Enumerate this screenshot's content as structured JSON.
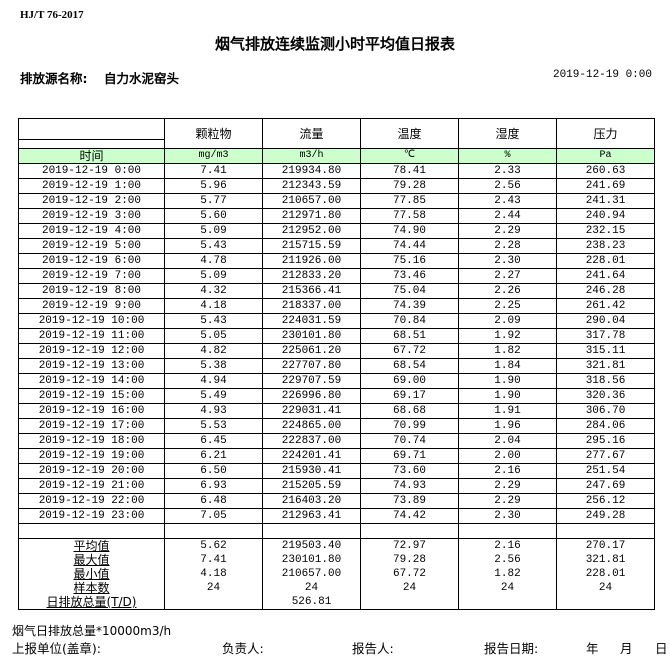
{
  "standard": "HJ/T  76-2017",
  "title": "烟气排放连续监测小时平均值日报表",
  "source_label": "排放源名称:",
  "source_value": "自力水泥窑头",
  "report_datetime": "2019-12-19 0:00",
  "table": {
    "headers": [
      "颗粒物",
      "流量",
      "温度",
      "湿度",
      "压力"
    ],
    "time_label": "时间",
    "units": [
      "mg/m3",
      "m3/h",
      "℃",
      "%",
      "Pa"
    ],
    "rows": [
      [
        "2019-12-19 0:00",
        "7.41",
        "219934.80",
        "78.41",
        "2.33",
        "260.63"
      ],
      [
        "2019-12-19 1:00",
        "5.96",
        "212343.59",
        "79.28",
        "2.56",
        "241.69"
      ],
      [
        "2019-12-19 2:00",
        "5.77",
        "210657.00",
        "77.85",
        "2.43",
        "241.31"
      ],
      [
        "2019-12-19 3:00",
        "5.60",
        "212971.80",
        "77.58",
        "2.44",
        "240.94"
      ],
      [
        "2019-12-19 4:00",
        "5.09",
        "212952.00",
        "74.90",
        "2.29",
        "232.15"
      ],
      [
        "2019-12-19 5:00",
        "5.43",
        "215715.59",
        "74.44",
        "2.28",
        "238.23"
      ],
      [
        "2019-12-19 6:00",
        "4.78",
        "211926.00",
        "75.16",
        "2.30",
        "228.01"
      ],
      [
        "2019-12-19 7:00",
        "5.09",
        "212833.20",
        "73.46",
        "2.27",
        "241.64"
      ],
      [
        "2019-12-19 8:00",
        "4.32",
        "215366.41",
        "75.04",
        "2.26",
        "246.28"
      ],
      [
        "2019-12-19 9:00",
        "4.18",
        "218337.00",
        "74.39",
        "2.25",
        "261.42"
      ],
      [
        "2019-12-19 10:00",
        "5.43",
        "224031.59",
        "70.84",
        "2.09",
        "290.04"
      ],
      [
        "2019-12-19 11:00",
        "5.05",
        "230101.80",
        "68.51",
        "1.92",
        "317.78"
      ],
      [
        "2019-12-19 12:00",
        "4.82",
        "225061.20",
        "67.72",
        "1.82",
        "315.11"
      ],
      [
        "2019-12-19 13:00",
        "5.38",
        "227707.80",
        "68.54",
        "1.84",
        "321.81"
      ],
      [
        "2019-12-19 14:00",
        "4.94",
        "229707.59",
        "69.00",
        "1.90",
        "318.56"
      ],
      [
        "2019-12-19 15:00",
        "5.49",
        "226996.80",
        "69.17",
        "1.90",
        "320.36"
      ],
      [
        "2019-12-19 16:00",
        "4.93",
        "229031.41",
        "68.68",
        "1.91",
        "306.70"
      ],
      [
        "2019-12-19 17:00",
        "5.53",
        "224865.00",
        "70.99",
        "1.96",
        "284.06"
      ],
      [
        "2019-12-19 18:00",
        "6.45",
        "222837.00",
        "70.74",
        "2.04",
        "295.16"
      ],
      [
        "2019-12-19 19:00",
        "6.21",
        "224201.41",
        "69.71",
        "2.00",
        "277.67"
      ],
      [
        "2019-12-19 20:00",
        "6.50",
        "215930.41",
        "73.60",
        "2.16",
        "251.54"
      ],
      [
        "2019-12-19 21:00",
        "6.93",
        "215205.59",
        "74.93",
        "2.29",
        "247.69"
      ],
      [
        "2019-12-19 22:00",
        "6.48",
        "216403.20",
        "73.89",
        "2.29",
        "256.12"
      ],
      [
        "2019-12-19 23:00",
        "7.05",
        "212963.41",
        "74.42",
        "2.30",
        "249.28"
      ]
    ],
    "summary": [
      [
        "平均值",
        "5.62",
        "219503.40",
        "72.97",
        "2.16",
        "270.17"
      ],
      [
        "最大值",
        "7.41",
        "230101.80",
        "79.28",
        "2.56",
        "321.81"
      ],
      [
        "最小值",
        "4.18",
        "210657.00",
        "67.72",
        "1.82",
        "228.01"
      ],
      [
        "样本数",
        "24",
        "24",
        "24",
        "24",
        "24"
      ],
      [
        "日排放总量(T/D)",
        "",
        "526.81",
        "",
        "",
        ""
      ]
    ]
  },
  "note": "烟气日排放总量*10000m3/h",
  "signature": {
    "unit": "上报单位(盖章):",
    "responsible": "负责人:",
    "reporter": "报告人:",
    "report_date": "报告日期:",
    "year": "年",
    "month": "月",
    "day": "日"
  }
}
